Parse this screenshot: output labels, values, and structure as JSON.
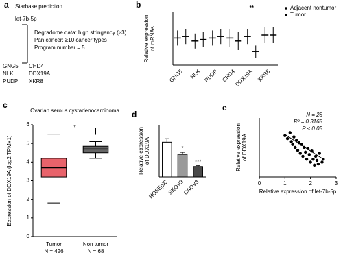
{
  "panel_a": {
    "label": "a",
    "title": "Starbase prediction",
    "mirna": "let-7b-5p",
    "criteria": [
      "Degradome data: high stringency (≥3)",
      "Pan cancer: ≥10 cancer types",
      "Program number = 5"
    ],
    "genes": [
      [
        "GNG5",
        "CHD4"
      ],
      [
        "NLK",
        "DDX19A"
      ],
      [
        "PUDP",
        "XKR8"
      ]
    ]
  },
  "chart_data": [
    {
      "type": "dot",
      "label": "b",
      "y_label": [
        "Relative expression",
        "of mRNAs"
      ],
      "categories": [
        "GNG5",
        "NLK",
        "PUDP",
        "CHD4",
        "DDX19A",
        "XKR8"
      ],
      "ylim": [
        0,
        3.5
      ],
      "series": [
        {
          "name": "Adjacent nontumor",
          "color": "#000000",
          "values": [
            1.8,
            1.6,
            1.8,
            1.8,
            1.9,
            2.0
          ],
          "errors": [
            0.5,
            0.5,
            0.5,
            0.6,
            0.5,
            0.5
          ]
        },
        {
          "name": "Tumor",
          "color": "#000000",
          "values": [
            1.9,
            1.7,
            1.9,
            1.6,
            0.9,
            2.0
          ],
          "errors": [
            0.5,
            0.5,
            0.5,
            0.6,
            0.4,
            0.5
          ]
        }
      ],
      "significance": [
        null,
        null,
        null,
        null,
        "**",
        null
      ]
    },
    {
      "type": "box",
      "label": "c",
      "title": "Ovarian serous cystadenocarcinoma",
      "y_label": [
        "Expression of DDX19A (log2 TPM+1)"
      ],
      "categories": [
        "Tumor",
        "Non tumor"
      ],
      "n_labels": [
        "N = 426",
        "N = 68"
      ],
      "colors": [
        "#e8636b",
        "#666666"
      ],
      "boxes": [
        {
          "whisker_low": 1.8,
          "q1": 3.2,
          "median": 3.7,
          "q3": 4.2,
          "whisker_high": 5.5
        },
        {
          "whisker_low": 4.2,
          "q1": 4.5,
          "median": 4.7,
          "q3": 4.85,
          "whisker_high": 5.1
        }
      ],
      "ylim": [
        0,
        6
      ],
      "yticks": [
        0,
        1,
        2,
        3,
        4,
        5,
        6
      ],
      "significance": "*",
      "significance_color": "#e8636b"
    },
    {
      "type": "bar",
      "label": "d",
      "y_label": [
        "Relative expression",
        "of DDX19A"
      ],
      "categories": [
        "HOSEpiC",
        "SKOV3",
        "CAOV3"
      ],
      "values": [
        1.0,
        0.65,
        0.3
      ],
      "errors": [
        0.1,
        0.06,
        0.03
      ],
      "colors": [
        "#ffffff",
        "#9a9a9a",
        "#4a4a4a"
      ],
      "ylim": [
        0,
        1.5
      ],
      "significance": [
        null,
        "*",
        "***"
      ]
    },
    {
      "type": "scatter",
      "label": "e",
      "x_label": "Relative expression of let-7b-5p",
      "y_label": [
        "Relative expression",
        "of DDX19A"
      ],
      "xlim": [
        0,
        3
      ],
      "xticks": [
        0,
        1,
        2,
        3
      ],
      "ylim": [
        0,
        1
      ],
      "color": "#000000",
      "x": [
        1.0,
        1.1,
        1.2,
        1.25,
        1.3,
        1.35,
        1.4,
        1.45,
        1.5,
        1.55,
        1.6,
        1.65,
        1.7,
        1.75,
        1.8,
        1.85,
        1.9,
        1.95,
        2.0,
        2.05,
        2.1,
        2.15,
        2.2,
        2.25,
        2.3,
        2.35,
        2.45,
        2.5
      ],
      "y": [
        0.7,
        0.65,
        0.75,
        0.6,
        0.55,
        0.68,
        0.5,
        0.62,
        0.45,
        0.58,
        0.4,
        0.55,
        0.35,
        0.5,
        0.42,
        0.3,
        0.48,
        0.38,
        0.25,
        0.44,
        0.3,
        0.2,
        0.35,
        0.28,
        0.22,
        0.4,
        0.25,
        0.3
      ],
      "fit": {
        "x": [
          1.0,
          2.5
        ],
        "y": [
          0.72,
          0.3
        ]
      },
      "annotations": [
        "N = 28",
        "R² = 0.3168",
        "P < 0.05"
      ]
    }
  ]
}
